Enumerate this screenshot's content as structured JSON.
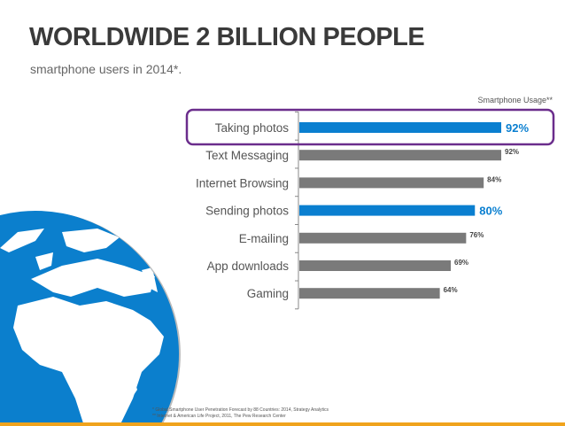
{
  "slide": {
    "title": "WORLDWIDE 2 BILLION PEOPLE",
    "subtitle": "smartphone users in 2014*.",
    "footnotes": [
      "* Global Smartphone User Penetration Forecast by 88 Countries: 2014, Strategy Analytics",
      "** Internet & American Life Project, 2011, The Pew Research Center"
    ],
    "highlight_color": "#6b2d8c",
    "accent_bar": "#f0a31c"
  },
  "chart_data": {
    "type": "bar",
    "orientation": "horizontal",
    "title": "Smartphone Usage**",
    "categories": [
      "Taking photos",
      "Text Messaging",
      "Internet Browsing",
      "Sending photos",
      "E-mailing",
      "App downloads",
      "Gaming"
    ],
    "values": [
      92,
      92,
      84,
      80,
      76,
      69,
      64
    ],
    "data_labels": [
      "92%",
      "92%",
      "84%",
      "80%",
      "76%",
      "69%",
      "64%"
    ],
    "highlighted": [
      true,
      false,
      false,
      true,
      false,
      false,
      false
    ],
    "highlight_box": "Taking photos",
    "colors": {
      "highlight": "#0a7fd0",
      "default": "#7a7a7a"
    },
    "xlim": [
      0,
      100
    ],
    "grid": false
  }
}
